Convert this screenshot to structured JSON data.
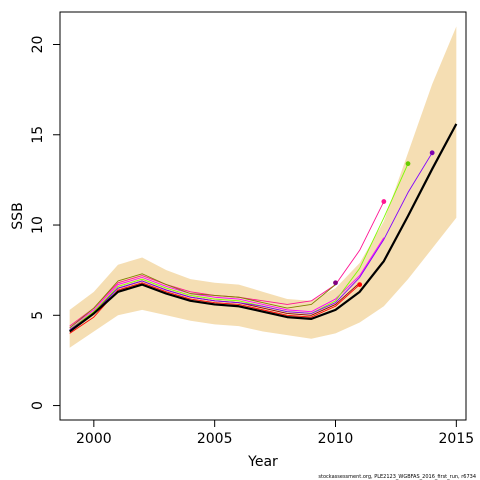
{
  "chart_data": {
    "type": "line",
    "title": "",
    "xlabel": "Year",
    "ylabel": "SSB",
    "xlim": [
      1998.6,
      2015.4
    ],
    "ylim": [
      -0.8,
      21.8
    ],
    "x_ticks": [
      2000,
      2005,
      2010,
      2015
    ],
    "y_ticks": [
      0,
      5,
      10,
      15,
      20
    ],
    "grid": false,
    "legend": "none",
    "confidence_band": {
      "color": "#f5deb3",
      "x": [
        1999,
        2000,
        2001,
        2002,
        2003,
        2004,
        2005,
        2006,
        2007,
        2008,
        2009,
        2010,
        2011,
        2012,
        2013,
        2014,
        2015
      ],
      "upper": [
        5.3,
        6.3,
        7.8,
        8.2,
        7.5,
        7.0,
        6.8,
        6.7,
        6.3,
        5.9,
        5.8,
        6.5,
        7.9,
        10.2,
        14.0,
        17.8,
        21.0
      ],
      "lower": [
        3.2,
        4.1,
        5.0,
        5.3,
        5.0,
        4.7,
        4.5,
        4.4,
        4.1,
        3.9,
        3.7,
        4.0,
        4.6,
        5.5,
        7.0,
        8.7,
        10.4
      ]
    },
    "series": [
      {
        "color": "#000000",
        "width": 2.2,
        "x": [
          1999,
          2000,
          2001,
          2002,
          2003,
          2004,
          2005,
          2006,
          2007,
          2008,
          2009,
          2010,
          2011,
          2012,
          2013,
          2014,
          2015
        ],
        "values": [
          4.1,
          5.1,
          6.3,
          6.7,
          6.2,
          5.8,
          5.6,
          5.5,
          5.2,
          4.9,
          4.8,
          5.3,
          6.3,
          8.0,
          10.5,
          13.1,
          15.6
        ]
      },
      {
        "color": "#8b0000",
        "width": 0.9,
        "end_marker": true,
        "x": [
          1999,
          2000,
          2001,
          2002,
          2003,
          2004,
          2005,
          2006,
          2007,
          2008,
          2009,
          2010,
          2011
        ],
        "values": [
          4.2,
          5.2,
          6.5,
          6.9,
          6.4,
          6.0,
          5.8,
          5.7,
          5.4,
          5.1,
          5.0,
          5.6,
          6.8
        ]
      },
      {
        "color": "#ff0000",
        "width": 0.9,
        "x": [
          1999,
          2000,
          2001,
          2002,
          2003,
          2004,
          2005,
          2006,
          2007,
          2008,
          2009,
          2010,
          2011
        ],
        "values": [
          4.0,
          4.9,
          6.4,
          6.8,
          6.3,
          5.9,
          5.7,
          5.6,
          5.3,
          5.0,
          4.9,
          5.5,
          6.7
        ]
      },
      {
        "color": "#ff00ff",
        "width": 0.9,
        "end_marker": true,
        "x": [
          1999,
          2000,
          2001,
          2002,
          2003,
          2004,
          2005,
          2006,
          2007,
          2008,
          2009,
          2010,
          2011,
          2012
        ],
        "values": [
          4.3,
          5.3,
          6.7,
          7.1,
          6.6,
          6.2,
          6.0,
          5.9,
          5.6,
          5.3,
          5.2,
          5.9,
          7.2,
          9.3
        ]
      },
      {
        "color": "#7cfc00",
        "width": 0.9,
        "end_marker": true,
        "x": [
          1999,
          2000,
          2001,
          2002,
          2003,
          2004,
          2005,
          2006,
          2007,
          2008,
          2009,
          2010,
          2011,
          2012,
          2013
        ],
        "values": [
          4.2,
          5.2,
          6.6,
          7.0,
          6.5,
          6.1,
          5.9,
          5.8,
          5.5,
          5.2,
          5.1,
          5.8,
          7.6,
          10.4,
          13.4
        ]
      },
      {
        "color": "#ff1493",
        "width": 0.9,
        "end_marker": true,
        "x": [
          1999,
          2000,
          2001,
          2002,
          2003,
          2004,
          2005,
          2006,
          2007,
          2008,
          2009,
          2010,
          2011,
          2012
        ],
        "values": [
          4.4,
          5.4,
          6.8,
          7.2,
          6.7,
          6.3,
          6.1,
          6.0,
          5.8,
          5.6,
          5.8,
          6.7,
          8.6,
          11.3
        ]
      },
      {
        "color": "#808000",
        "width": 0.9,
        "end_marker": true,
        "x": [
          1999,
          2000,
          2001,
          2002,
          2003,
          2004,
          2005,
          2006,
          2007,
          2008,
          2009,
          2010
        ],
        "values": [
          4.3,
          5.4,
          6.9,
          7.3,
          6.7,
          6.2,
          6.1,
          6.0,
          5.7,
          5.4,
          5.6,
          6.7
        ]
      },
      {
        "color": "#8000ff",
        "width": 0.9,
        "end_marker": true,
        "x": [
          1999,
          2000,
          2001,
          2002,
          2003,
          2004,
          2005,
          2006,
          2007,
          2008,
          2009,
          2010,
          2011,
          2012,
          2013,
          2014
        ],
        "values": [
          4.2,
          5.1,
          6.5,
          6.9,
          6.4,
          6.0,
          5.8,
          5.7,
          5.5,
          5.2,
          5.1,
          5.7,
          7.1,
          9.2,
          11.8,
          14.0
        ]
      }
    ],
    "markers": [
      {
        "x": 2010,
        "y": 6.8,
        "color": "#800080"
      },
      {
        "x": 2011,
        "y": 6.7,
        "color": "#ff0000"
      },
      {
        "x": 2012,
        "y": 11.3,
        "color": "#ff1493"
      },
      {
        "x": 2013,
        "y": 13.4,
        "color": "#66cc00"
      },
      {
        "x": 2014,
        "y": 14.0,
        "color": "#7b00b0"
      }
    ],
    "credit": "stockassessment.org, PLE2123_WGBFAS_2016_first_run, r6734"
  }
}
